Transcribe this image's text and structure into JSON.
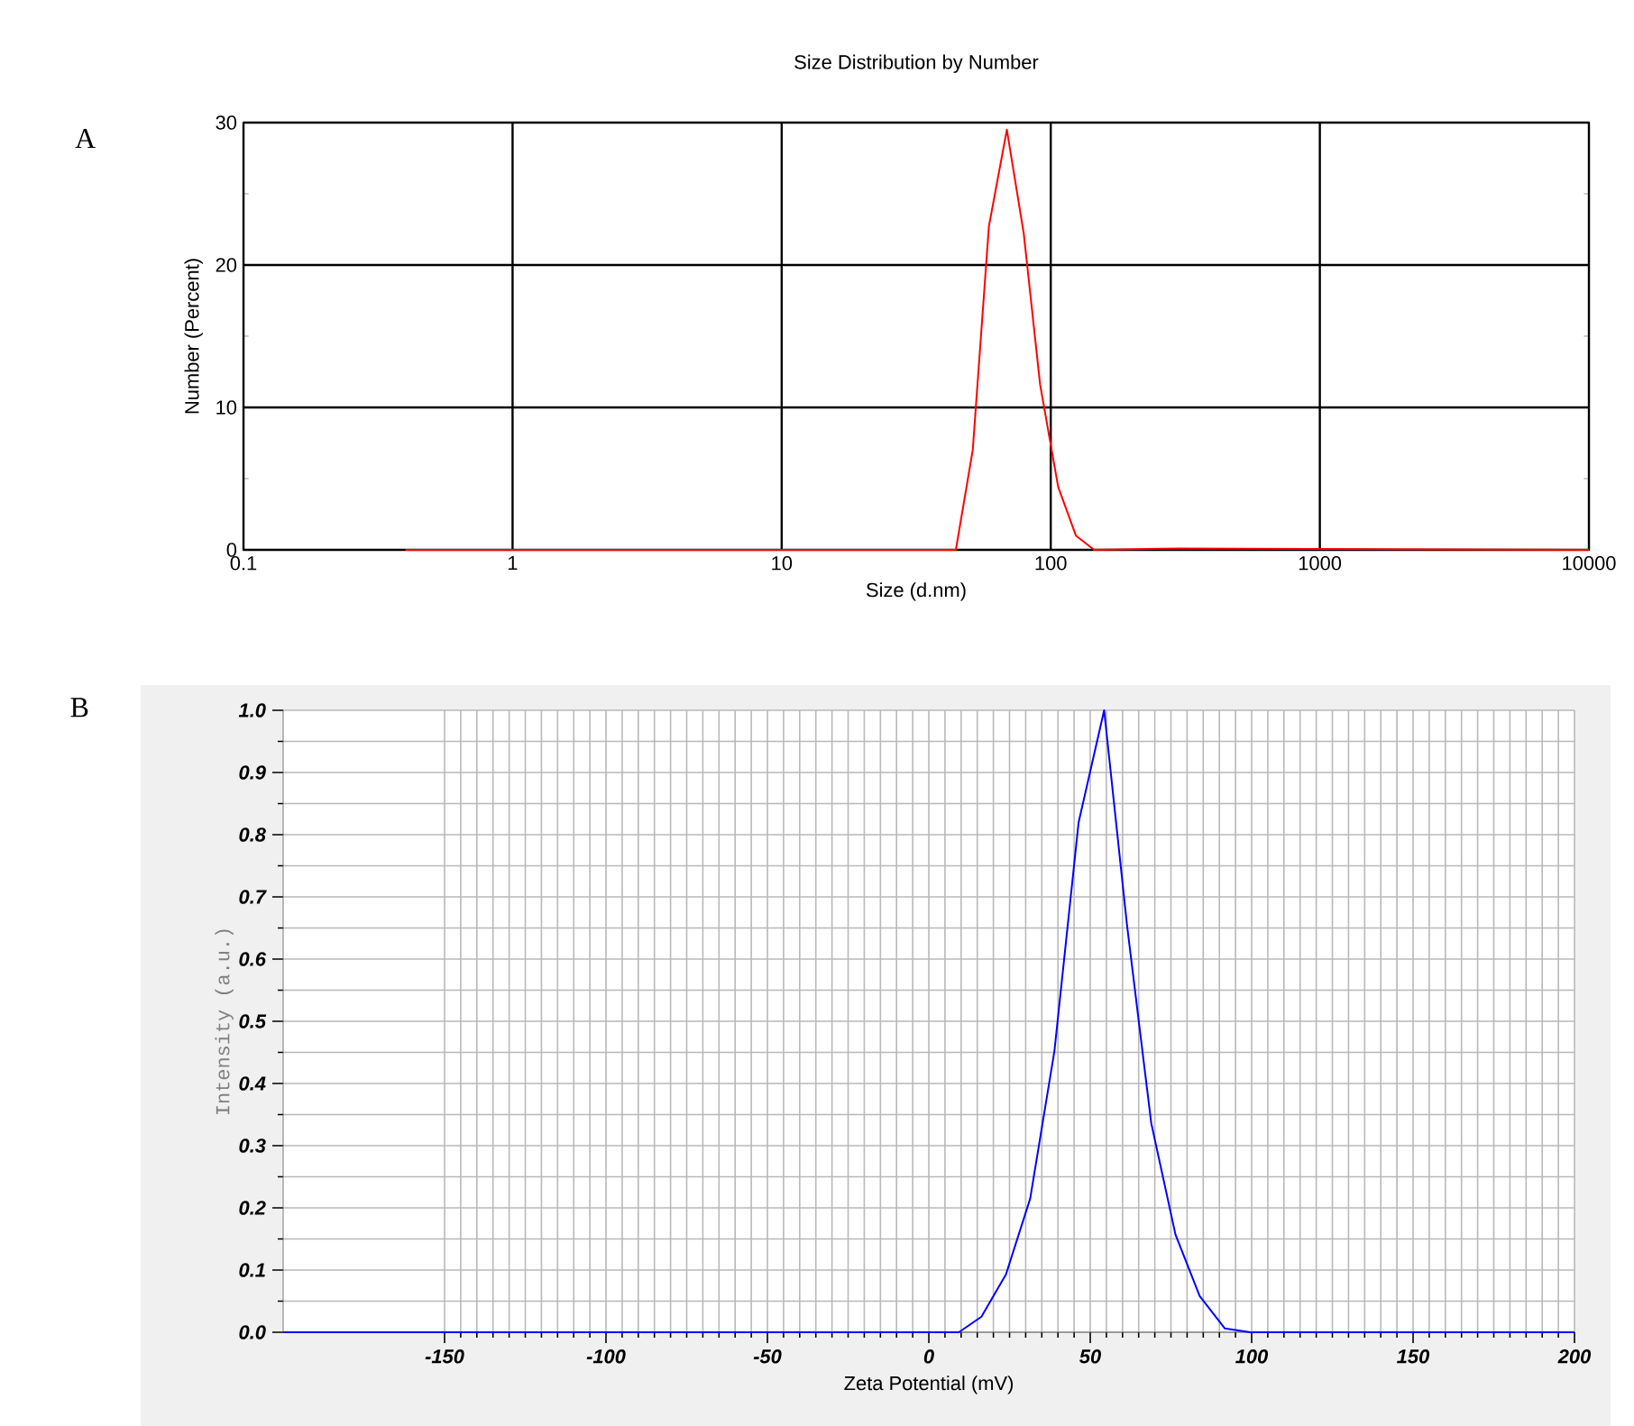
{
  "chart_data": [
    {
      "type": "line",
      "title": "Size Distribution by Number",
      "xlabel": "Size (d.nm)",
      "ylabel": "Number (Percent)",
      "log": "x",
      "xlim": [
        0.1,
        10000
      ],
      "ylim": [
        0,
        30
      ],
      "xticks": [
        0.1,
        1,
        10,
        100,
        1000,
        10000
      ],
      "yticks": [
        0,
        10,
        20,
        30
      ],
      "grid": true,
      "annotations": [
        "A"
      ],
      "series": [
        {
          "color": "#ff0000",
          "x": [
            0.4,
            44.4,
            51.3,
            58.9,
            68.7,
            79.4,
            91.3,
            106.6,
            124,
            145,
            300,
            10000
          ],
          "values": [
            0,
            0,
            7.0,
            22.7,
            29.5,
            22.2,
            11.6,
            4.4,
            1.0,
            0,
            0.1,
            0
          ]
        }
      ]
    },
    {
      "type": "line",
      "xlabel": "Zeta Potential (mV)",
      "ylabel": "Intensity (a.u.)",
      "xlim": [
        -200,
        200
      ],
      "ylim": [
        0,
        1
      ],
      "xticks": [
        -150,
        -100,
        -50,
        0,
        50,
        100,
        150,
        200
      ],
      "yticks": [
        {
          "value": 0,
          "label": "0.0"
        },
        {
          "value": 0.1,
          "label": "0.1"
        },
        {
          "value": 0.2,
          "label": "0.2"
        },
        {
          "value": 0.3,
          "label": "0.3"
        },
        {
          "value": 0.4,
          "label": "0.4"
        },
        {
          "value": 0.5,
          "label": "0.5"
        },
        {
          "value": 0.6,
          "label": "0.6"
        },
        {
          "value": 0.7,
          "label": "0.7"
        },
        {
          "value": 0.8,
          "label": "0.8"
        },
        {
          "value": 0.9,
          "label": "0.9"
        },
        {
          "value": 1,
          "label": "1.0"
        }
      ],
      "grid": true,
      "annotations": [
        "B"
      ],
      "series": [
        {
          "color": "#0000ff",
          "x": [
            -200,
            9.3,
            16.3,
            23.9,
            31.4,
            38.9,
            46.4,
            54.3,
            61.4,
            68.9,
            76.4,
            83.9,
            91.7,
            99.6,
            200
          ],
          "values": [
            0,
            0,
            0.025,
            0.093,
            0.215,
            0.452,
            0.82,
            1.0,
            0.654,
            0.336,
            0.157,
            0.058,
            0.006,
            0,
            0
          ]
        }
      ]
    }
  ]
}
